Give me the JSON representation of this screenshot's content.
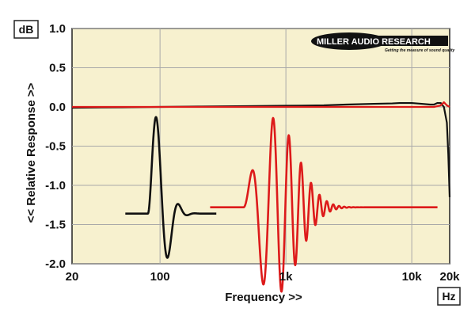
{
  "logo": {
    "name": "MILLER AUDIO RESEARCH",
    "tagline": "Getting the measure of sound quality"
  },
  "colors": {
    "plot_background": "#f7f1cf",
    "grid": "#a9a9a9",
    "series_black": "#111111",
    "series_red": "#dd1a1a"
  },
  "chart_data": {
    "type": "line",
    "xlabel": "Frequency >>",
    "ylabel": "<< Relative Response >>",
    "y_unit": "dB",
    "x_unit": "Hz",
    "x_scale": "log",
    "xlim": [
      20,
      20000
    ],
    "ylim": [
      -2.0,
      1.0
    ],
    "grid": true,
    "x_ticks": [
      {
        "value": 20,
        "label": "20"
      },
      {
        "value": 100,
        "label": "100"
      },
      {
        "value": 1000,
        "label": "1k"
      },
      {
        "value": 10000,
        "label": "10k"
      },
      {
        "value": 20000,
        "label": "20k"
      }
    ],
    "y_ticks": [
      {
        "value": 1.0,
        "label": "1.0"
      },
      {
        "value": 0.5,
        "label": "0.5"
      },
      {
        "value": 0.0,
        "label": "0.0"
      },
      {
        "value": -0.5,
        "label": "-0.5"
      },
      {
        "value": -1.0,
        "label": "-1.0"
      },
      {
        "value": -1.5,
        "label": "-1.5"
      },
      {
        "value": -2.0,
        "label": "-2.0"
      }
    ],
    "series": [
      {
        "color": "#111111",
        "x": [
          20,
          50,
          100,
          200,
          500,
          1000,
          2000,
          3000,
          5000,
          7000,
          8000,
          10000,
          12000,
          14000,
          15000,
          16000,
          17000,
          18000,
          19000,
          19500,
          20000
        ],
        "y": [
          -0.01,
          -0.005,
          0.0,
          0.005,
          0.01,
          0.015,
          0.02,
          0.03,
          0.04,
          0.045,
          0.05,
          0.05,
          0.04,
          0.03,
          0.03,
          0.05,
          0.05,
          0.0,
          -0.2,
          -0.6,
          -1.15
        ]
      },
      {
        "color": "#dd1a1a",
        "x": [
          20,
          50,
          100,
          200,
          500,
          1000,
          2000,
          5000,
          10000,
          15000,
          17000,
          18000,
          19000,
          20000
        ],
        "y": [
          0.0,
          0.0,
          0.0,
          0.0,
          0.0,
          0.0,
          0.0,
          0.0,
          0.0,
          0.0,
          0.02,
          0.06,
          0.02,
          0.0
        ]
      }
    ],
    "insets": [
      {
        "type": "impulse",
        "color": "#111111",
        "x_start": 53,
        "x_end": 280,
        "baseline": -1.36,
        "onset": 80,
        "wave_end": 260,
        "frequency": 100,
        "decay": 7,
        "amplitude": 1.3
      },
      {
        "type": "impulse",
        "color": "#dd1a1a",
        "x_start": 250,
        "x_end": 16000,
        "baseline": -1.28,
        "onset": 460,
        "wave_end": 6500,
        "frequency": 530,
        "decay": 1.6,
        "amplitude": 1.2
      }
    ]
  }
}
